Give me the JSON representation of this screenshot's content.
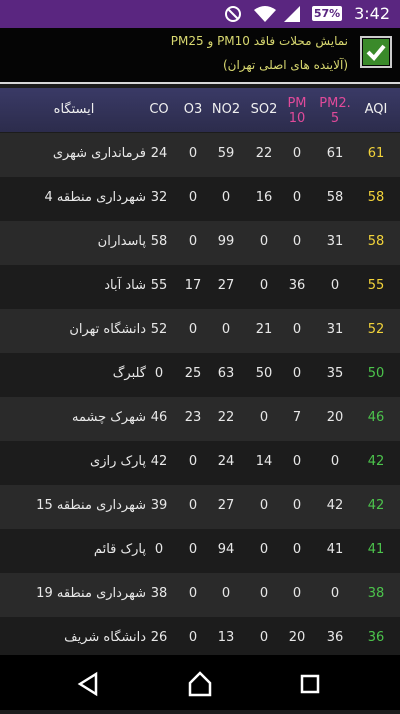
{
  "status_bar": {
    "battery": "57%",
    "time": "3:42"
  },
  "header": {
    "title": "نمایش محلات فاقد PM10 و PM25",
    "subtitle": "(آلاینده های اصلی تهران)",
    "checked": true
  },
  "table": {
    "columns": [
      "ایستگاه",
      "CO",
      "O3",
      "NO2",
      "SO2",
      "PM10",
      "PM2.5",
      "AQI"
    ],
    "rows": [
      {
        "values": [
          "فرمانداری شهری",
          24,
          0,
          59,
          22,
          0,
          61,
          61
        ],
        "aqi_color": "#f2d33a"
      },
      {
        "values": [
          "شهرداری منطقه 4",
          32,
          0,
          0,
          16,
          0,
          58,
          58
        ],
        "aqi_color": "#f2d33a"
      },
      {
        "values": [
          "پاسداران",
          58,
          0,
          99,
          0,
          0,
          31,
          58
        ],
        "aqi_color": "#f2d33a"
      },
      {
        "values": [
          "شاد آباد",
          55,
          17,
          27,
          0,
          36,
          0,
          55
        ],
        "aqi_color": "#f2d33a"
      },
      {
        "values": [
          "دانشگاه تهران",
          52,
          0,
          0,
          21,
          0,
          31,
          52
        ],
        "aqi_color": "#f2d33a"
      },
      {
        "values": [
          "گلبرگ",
          0,
          25,
          63,
          50,
          0,
          35,
          50
        ],
        "aqi_color": "#4cc44c"
      },
      {
        "values": [
          "شهرک چشمه",
          46,
          23,
          22,
          0,
          7,
          20,
          46
        ],
        "aqi_color": "#4cc44c"
      },
      {
        "values": [
          "پارک رازی",
          42,
          0,
          24,
          14,
          0,
          0,
          42
        ],
        "aqi_color": "#4cc44c"
      },
      {
        "values": [
          "شهرداری منطقه 15",
          39,
          0,
          27,
          0,
          0,
          42,
          42
        ],
        "aqi_color": "#4cc44c"
      },
      {
        "values": [
          "پارک قائم",
          0,
          0,
          94,
          0,
          0,
          41,
          41
        ],
        "aqi_color": "#4cc44c"
      },
      {
        "values": [
          "شهرداری منطقه 19",
          38,
          0,
          0,
          0,
          0,
          0,
          38
        ],
        "aqi_color": "#4cc44c"
      },
      {
        "values": [
          "دانشگاه شریف",
          26,
          0,
          13,
          0,
          20,
          36,
          36
        ],
        "aqi_color": "#4cc44c"
      }
    ]
  }
}
